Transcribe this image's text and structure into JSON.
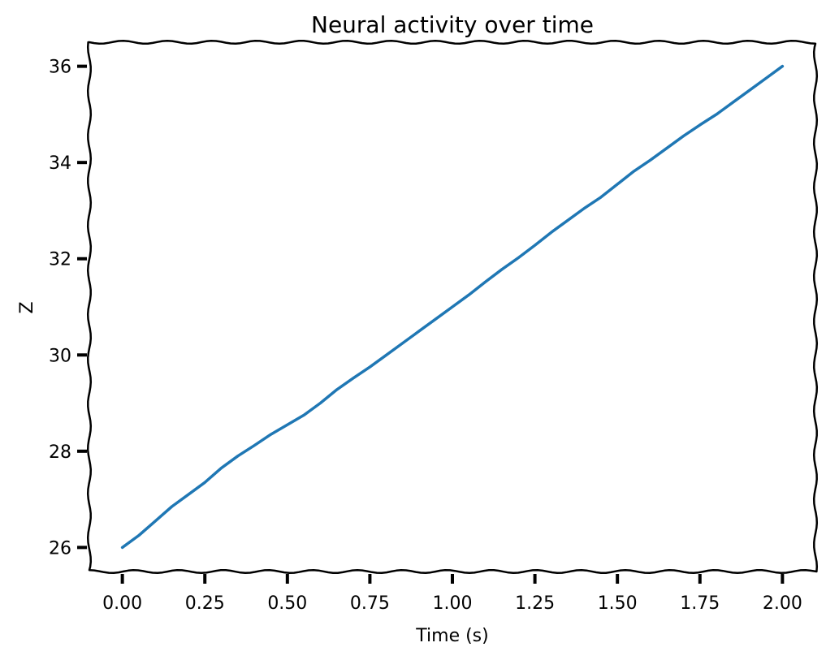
{
  "chart_data": {
    "type": "line",
    "title": "Neural activity over time",
    "xlabel": "Time (s)",
    "ylabel": "Z",
    "xlim": [
      -0.1,
      2.1
    ],
    "ylim": [
      25.5,
      36.5
    ],
    "x_ticks": [
      0.0,
      0.25,
      0.5,
      0.75,
      1.0,
      1.25,
      1.5,
      1.75,
      2.0
    ],
    "x_tick_labels": [
      "0.00",
      "0.25",
      "0.50",
      "0.75",
      "1.00",
      "1.25",
      "1.50",
      "1.75",
      "2.00"
    ],
    "y_ticks": [
      26,
      28,
      30,
      32,
      34,
      36
    ],
    "y_tick_labels": [
      "26",
      "28",
      "30",
      "32",
      "34",
      "36"
    ],
    "grid": false,
    "legend": "none",
    "series": [
      {
        "color": "#1f77b4",
        "x": [
          0.0,
          0.05,
          0.1,
          0.15,
          0.2,
          0.25,
          0.3,
          0.35,
          0.4,
          0.45,
          0.5,
          0.55,
          0.6,
          0.65,
          0.7,
          0.75,
          0.8,
          0.85,
          0.9,
          0.95,
          1.0,
          1.05,
          1.1,
          1.15,
          1.2,
          1.25,
          1.3,
          1.35,
          1.4,
          1.45,
          1.5,
          1.55,
          1.6,
          1.65,
          1.7,
          1.75,
          1.8,
          1.85,
          1.9,
          1.95,
          2.0
        ],
        "y": [
          26.0,
          26.25,
          26.55,
          26.85,
          27.1,
          27.35,
          27.65,
          27.9,
          28.12,
          28.35,
          28.55,
          28.75,
          29.0,
          29.28,
          29.52,
          29.75,
          30.0,
          30.25,
          30.5,
          30.75,
          31.0,
          31.25,
          31.52,
          31.78,
          32.02,
          32.28,
          32.55,
          32.8,
          33.05,
          33.28,
          33.55,
          33.82,
          34.05,
          34.3,
          34.55,
          34.78,
          35.0,
          35.25,
          35.5,
          35.75,
          36.0
        ]
      }
    ]
  }
}
